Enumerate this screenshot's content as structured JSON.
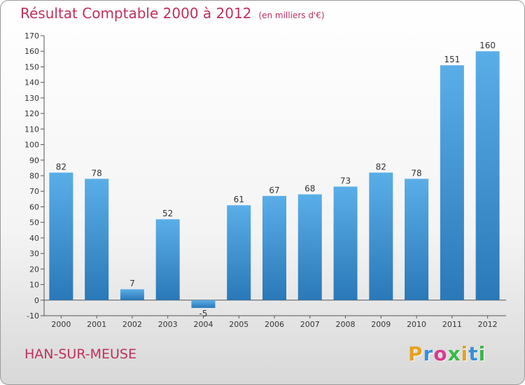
{
  "title": "Résultat Comptable 2000 à 2012",
  "title_unit": "(en milliers d'€)",
  "commune": "HAN-SUR-MEUSE",
  "logo": {
    "letters": [
      "P",
      "r",
      "o",
      "x",
      "i",
      "t",
      "i"
    ],
    "colors": [
      "#e8a020",
      "#3a8fd8",
      "#d83a8f",
      "#3ab84a",
      "#e8a020",
      "#3a8fd8",
      "#3ab84a"
    ]
  },
  "chart_data": {
    "type": "bar",
    "categories": [
      "2000",
      "2001",
      "2002",
      "2003",
      "2004",
      "2005",
      "2006",
      "2007",
      "2008",
      "2009",
      "2010",
      "2011",
      "2012"
    ],
    "values": [
      82,
      78,
      7,
      52,
      -5,
      61,
      67,
      68,
      73,
      82,
      78,
      151,
      160
    ],
    "ylim": [
      -10,
      170
    ],
    "yticks": [
      -10,
      0,
      10,
      20,
      30,
      40,
      50,
      60,
      70,
      80,
      90,
      100,
      110,
      120,
      130,
      140,
      150,
      160,
      170
    ],
    "grid": false,
    "bar_color_light": "#5aaee8",
    "bar_color_dark": "#2a78b8"
  }
}
